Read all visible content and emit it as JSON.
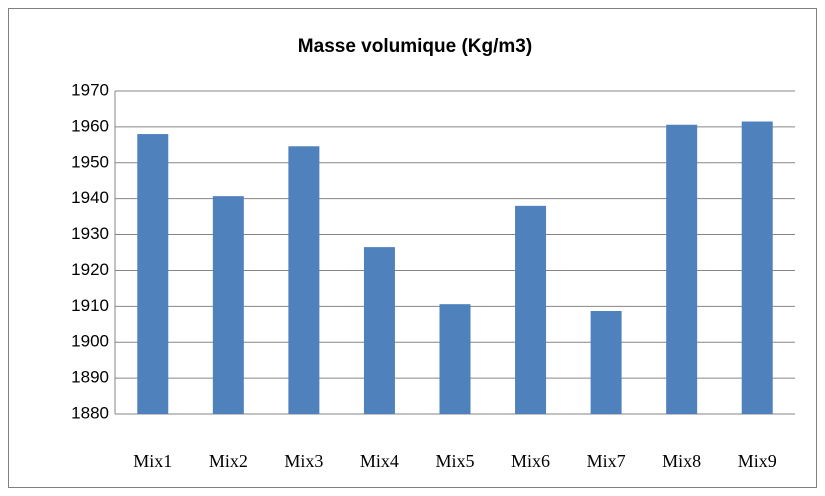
{
  "chart_data": {
    "type": "bar",
    "title": "Masse volumique (Kg/m3)",
    "categories": [
      "Mix1",
      "Mix2",
      "Mix3",
      "Mix4",
      "Mix5",
      "Mix6",
      "Mix7",
      "Mix8",
      "Mix9"
    ],
    "values": [
      1958,
      1940.7,
      1954.6,
      1926.5,
      1910.6,
      1938,
      1908.7,
      1960.6,
      1961.5
    ],
    "color": "#4f81bd",
    "ylim": [
      1880,
      1970
    ],
    "yticks": [
      1880,
      1890,
      1900,
      1910,
      1920,
      1930,
      1940,
      1950,
      1960,
      1970
    ],
    "grid": true
  }
}
